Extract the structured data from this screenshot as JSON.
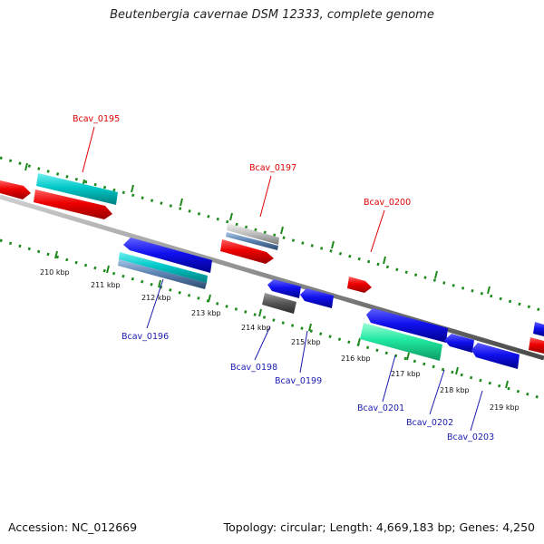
{
  "title": "Beutenbergia cavernae DSM 12333, complete genome",
  "accession": "Accession: NC_012669",
  "summary": "Topology: circular; Length: 4,669,183 bp; Genes: 4,250",
  "kbp_ticks": [
    "210 kbp",
    "211 kbp",
    "212 kbp",
    "213 kbp",
    "214 kbp",
    "215 kbp",
    "216 kbp",
    "217 kbp",
    "218 kbp",
    "219 kbp"
  ],
  "top_gene_labels": [
    "Bcav_0195",
    "Bcav_0197",
    "Bcav_0200"
  ],
  "bottom_gene_labels": [
    "Bcav_0196",
    "Bcav_0198",
    "Bcav_0199",
    "Bcav_0201",
    "Bcav_0202",
    "Bcav_0203"
  ],
  "colors": {
    "red": "#ee0000",
    "blue": "#1010ee",
    "cyan": "#00c8c8",
    "steel": "#5f86b4",
    "gray_light": "#bdbdbd",
    "gray_dark": "#555555",
    "mint": "#1fe8a0",
    "tick_green": "#1e8a1e",
    "backbone": "#8a8a8a",
    "label_red": "#dd0000",
    "label_blue": "#1a1ab0"
  }
}
